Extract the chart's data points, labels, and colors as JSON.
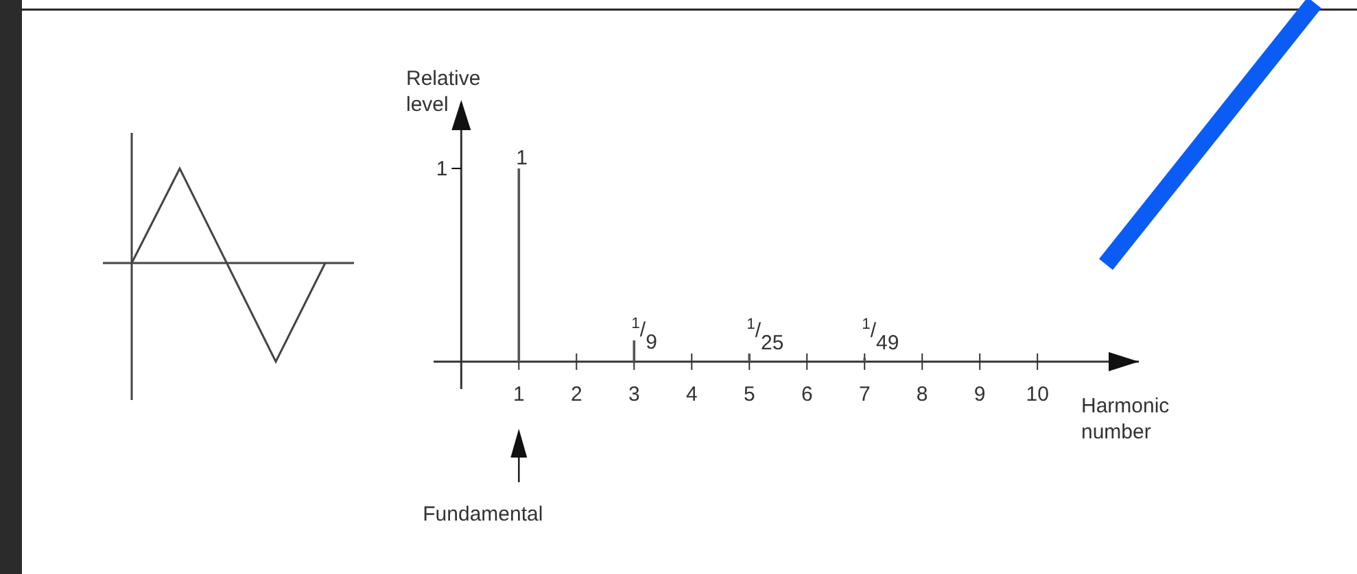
{
  "chart_data": {
    "type": "bar",
    "xlabel": "Harmonic number",
    "ylabel": "Relative level",
    "x": [
      1,
      3,
      5,
      7
    ],
    "values": [
      1,
      0.11,
      0.04,
      0.02
    ],
    "color": "#555555",
    "value_labels": [
      "1",
      "$^{1}$/$_{9}$",
      "$^{1}$/$_{25}$",
      "$^{1}$/$_{49}$"
    ],
    "xlim": [
      -0.48,
      11.76
    ],
    "xticks": [
      1,
      2,
      3,
      4,
      5,
      6,
      7,
      8,
      9,
      10
    ],
    "ylim": [
      0,
      1.34
    ],
    "yticks": [
      1
    ],
    "annotations": [
      "Fundamental"
    ]
  }
}
